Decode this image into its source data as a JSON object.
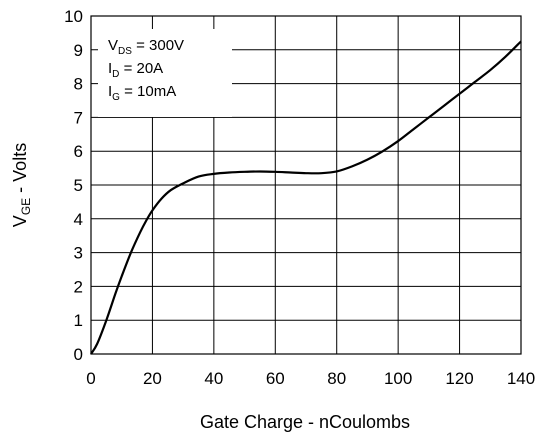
{
  "chart_data": {
    "type": "line",
    "title": "",
    "xlabel": "Gate Charge - nCoulombs",
    "ylabel_main": "V",
    "ylabel_sub": "GE",
    "ylabel_rest": " - Volts",
    "xlim": [
      0,
      140
    ],
    "ylim": [
      0,
      10
    ],
    "xticks": [
      "0",
      "20",
      "40",
      "60",
      "80",
      "100",
      "120",
      "140"
    ],
    "yticks": [
      "0",
      "1",
      "2",
      "3",
      "4",
      "5",
      "6",
      "7",
      "8",
      "9",
      "10"
    ],
    "grid": true,
    "annotations": [
      {
        "main": "V",
        "sub": "DS",
        "rest": " = 300V"
      },
      {
        "main": "I",
        "sub": "D",
        "rest": " = 20A"
      },
      {
        "main": "I",
        "sub": "G",
        "rest": " = 10mA"
      }
    ],
    "series": [
      {
        "x": [
          0,
          2,
          5,
          8,
          10,
          13,
          16,
          18,
          20,
          23,
          26,
          30,
          35,
          40,
          45,
          50,
          55,
          60,
          65,
          70,
          75,
          80,
          85,
          90,
          95,
          100,
          105,
          110,
          115,
          120,
          125,
          130,
          135,
          140
        ],
        "y": [
          0.0,
          0.3,
          1.0,
          1.8,
          2.3,
          3.0,
          3.6,
          3.95,
          4.25,
          4.6,
          4.85,
          5.05,
          5.25,
          5.33,
          5.37,
          5.39,
          5.4,
          5.39,
          5.37,
          5.35,
          5.35,
          5.4,
          5.55,
          5.75,
          6.0,
          6.3,
          6.65,
          7.0,
          7.35,
          7.7,
          8.05,
          8.4,
          8.8,
          9.25
        ]
      }
    ]
  }
}
